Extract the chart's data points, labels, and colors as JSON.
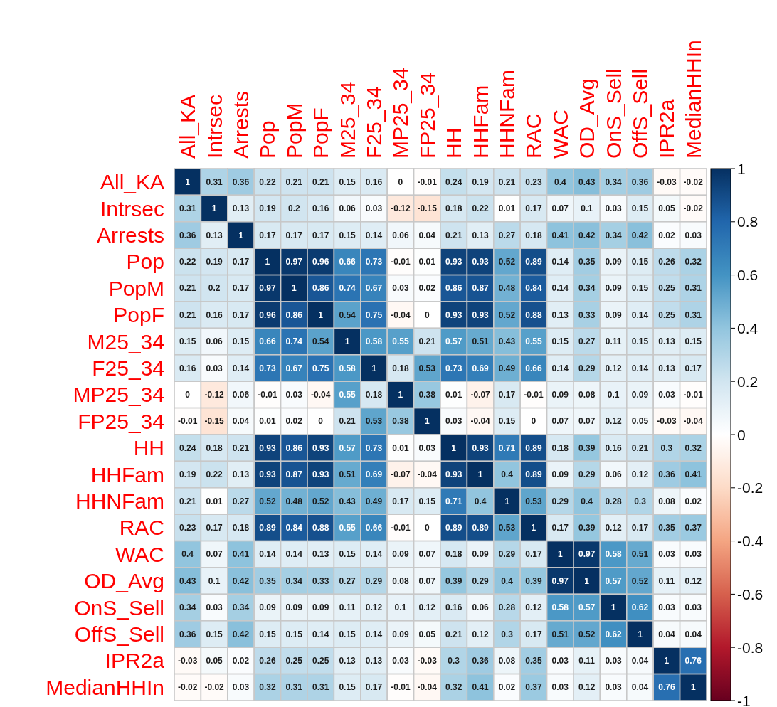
{
  "chart_data": {
    "type": "heatmap",
    "categories": [
      "All_KA",
      "Intrsec",
      "Arrests",
      "Pop",
      "PopM",
      "PopF",
      "M25_34",
      "F25_34",
      "MP25_34",
      "FP25_34",
      "HH",
      "HHFam",
      "HHNFam",
      "RAC",
      "WAC",
      "OD_Avg",
      "OnS_Sell",
      "OffS_Sell",
      "IPR2a",
      "MedianHHIn"
    ],
    "y_categories": [
      "All_KA",
      "Intrsec",
      "Arrests",
      "Pop",
      "PopM",
      "PopF",
      "M25_34",
      "F25_34",
      "MP25_34",
      "FP25_34",
      "HH",
      "HHFam",
      "HHNFam",
      "RAC",
      "WAC",
      "OD_Avg",
      "OnS_Sell",
      "OffS_Sell",
      "IPR2a",
      "MedianHHIn"
    ],
    "cells": [
      [
        1,
        0.31,
        0.36,
        0.22,
        0.21,
        0.21,
        0.15,
        0.16,
        0,
        -0.01,
        0.24,
        0.19,
        0.21,
        0.23,
        0.4,
        0.43,
        0.34,
        0.36,
        -0.03,
        -0.02
      ],
      [
        0.31,
        1,
        0.13,
        0.19,
        0.2,
        0.16,
        0.06,
        0.03,
        -0.12,
        -0.15,
        0.18,
        0.22,
        0.01,
        0.17,
        0.07,
        0.1,
        0.03,
        0.15,
        0.05,
        -0.02
      ],
      [
        0.36,
        0.13,
        1,
        0.17,
        0.17,
        0.17,
        0.15,
        0.14,
        0.06,
        0.04,
        0.21,
        0.13,
        0.27,
        0.18,
        0.41,
        0.42,
        0.34,
        0.42,
        0.02,
        0.03
      ],
      [
        0.22,
        0.19,
        0.17,
        1,
        0.97,
        0.96,
        0.66,
        0.73,
        -0.01,
        0.01,
        0.93,
        0.93,
        0.52,
        0.89,
        0.14,
        0.35,
        0.09,
        0.15,
        0.26,
        0.32
      ],
      [
        0.21,
        0.2,
        0.17,
        0.97,
        1,
        0.86,
        0.74,
        0.67,
        0.03,
        0.02,
        0.86,
        0.87,
        0.48,
        0.84,
        0.14,
        0.34,
        0.09,
        0.15,
        0.25,
        0.31
      ],
      [
        0.21,
        0.16,
        0.17,
        0.96,
        0.86,
        1,
        0.54,
        0.75,
        -0.04,
        0,
        0.93,
        0.93,
        0.52,
        0.88,
        0.13,
        0.33,
        0.09,
        0.14,
        0.25,
        0.31
      ],
      [
        0.15,
        0.06,
        0.15,
        0.66,
        0.74,
        0.54,
        1,
        0.58,
        0.55,
        0.21,
        0.57,
        0.51,
        0.43,
        0.55,
        0.15,
        0.27,
        0.11,
        0.15,
        0.13,
        0.15
      ],
      [
        0.16,
        0.03,
        0.14,
        0.73,
        0.67,
        0.75,
        0.58,
        1,
        0.18,
        0.53,
        0.73,
        0.69,
        0.49,
        0.66,
        0.14,
        0.29,
        0.12,
        0.14,
        0.13,
        0.17
      ],
      [
        0,
        -0.12,
        0.06,
        -0.01,
        0.03,
        -0.04,
        0.55,
        0.18,
        1,
        0.38,
        0.01,
        -0.07,
        0.17,
        -0.01,
        0.09,
        0.08,
        0.1,
        0.09,
        0.03,
        -0.01
      ],
      [
        -0.01,
        -0.15,
        0.04,
        0.01,
        0.02,
        0,
        0.21,
        0.53,
        0.38,
        1,
        0.03,
        -0.04,
        0.15,
        0,
        0.07,
        0.07,
        0.12,
        0.05,
        -0.03,
        -0.04
      ],
      [
        0.24,
        0.18,
        0.21,
        0.93,
        0.86,
        0.93,
        0.57,
        0.73,
        0.01,
        0.03,
        1,
        0.93,
        0.71,
        0.89,
        0.18,
        0.39,
        0.16,
        0.21,
        0.3,
        0.32
      ],
      [
        0.19,
        0.22,
        0.13,
        0.93,
        0.87,
        0.93,
        0.51,
        0.69,
        -0.07,
        -0.04,
        0.93,
        1,
        0.4,
        0.89,
        0.09,
        0.29,
        0.06,
        0.12,
        0.36,
        0.41
      ],
      [
        0.21,
        0.01,
        0.27,
        0.52,
        0.48,
        0.52,
        0.43,
        0.49,
        0.17,
        0.15,
        0.71,
        0.4,
        1,
        0.53,
        0.29,
        0.4,
        0.28,
        0.3,
        0.08,
        0.02
      ],
      [
        0.23,
        0.17,
        0.18,
        0.89,
        0.84,
        0.88,
        0.55,
        0.66,
        -0.01,
        0,
        0.89,
        0.89,
        0.53,
        1,
        0.17,
        0.39,
        0.12,
        0.17,
        0.35,
        0.37
      ],
      [
        0.4,
        0.07,
        0.41,
        0.14,
        0.14,
        0.13,
        0.15,
        0.14,
        0.09,
        0.07,
        0.18,
        0.09,
        0.29,
        0.17,
        1,
        0.97,
        0.58,
        0.51,
        0.03,
        0.03
      ],
      [
        0.43,
        0.1,
        0.42,
        0.35,
        0.34,
        0.33,
        0.27,
        0.29,
        0.08,
        0.07,
        0.39,
        0.29,
        0.4,
        0.39,
        0.97,
        1,
        0.57,
        0.52,
        0.11,
        0.12
      ],
      [
        0.34,
        0.03,
        0.34,
        0.09,
        0.09,
        0.09,
        0.11,
        0.12,
        0.1,
        0.12,
        0.16,
        0.06,
        0.28,
        0.12,
        0.58,
        0.57,
        1,
        0.62,
        0.03,
        0.03
      ],
      [
        0.36,
        0.15,
        0.42,
        0.15,
        0.15,
        0.14,
        0.15,
        0.14,
        0.09,
        0.05,
        0.21,
        0.12,
        0.3,
        0.17,
        0.51,
        0.52,
        0.62,
        1,
        0.04,
        0.04
      ],
      [
        -0.03,
        0.05,
        0.02,
        0.26,
        0.25,
        0.25,
        0.13,
        0.13,
        0.03,
        -0.03,
        0.3,
        0.36,
        0.08,
        0.35,
        0.03,
        0.11,
        0.03,
        0.04,
        1,
        0.76
      ],
      [
        -0.02,
        -0.02,
        0.03,
        0.32,
        0.31,
        0.31,
        0.15,
        0.17,
        -0.01,
        -0.04,
        0.32,
        0.41,
        0.02,
        0.37,
        0.03,
        0.12,
        0.03,
        0.04,
        0.76,
        1
      ]
    ],
    "data_labels": true,
    "colors": [
      "#67001f",
      "#b2182b",
      "#d6604d",
      "#f4a582",
      "#fddbc7",
      "#ffffff",
      "#d1e5f0",
      "#92c5de",
      "#4393c3",
      "#2166ac",
      "#053061"
    ],
    "clim": [
      -1,
      1
    ],
    "cticks": [
      -1,
      -0.8,
      -0.6,
      -0.4,
      -0.2,
      0,
      0.2,
      0.4,
      0.6,
      0.8,
      1
    ]
  }
}
